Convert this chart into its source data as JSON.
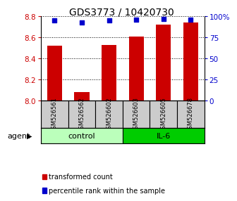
{
  "title": "GDS3773 / 10420730",
  "samples": [
    "GSM526561",
    "GSM526562",
    "GSM526602",
    "GSM526603",
    "GSM526605",
    "GSM526678"
  ],
  "bar_values": [
    8.52,
    8.08,
    8.53,
    8.61,
    8.72,
    8.74
  ],
  "percentile_values": [
    95,
    93,
    95,
    96,
    97,
    96
  ],
  "ylim_left": [
    8.0,
    8.8
  ],
  "ylim_right": [
    0,
    100
  ],
  "yticks_left": [
    8.0,
    8.2,
    8.4,
    8.6,
    8.8
  ],
  "yticks_right": [
    0,
    25,
    50,
    75,
    100
  ],
  "ytick_labels_right": [
    "0",
    "25",
    "50",
    "75",
    "100%"
  ],
  "bar_color": "#cc0000",
  "dot_color": "#0000cc",
  "bar_width": 0.55,
  "groups": [
    {
      "label": "control",
      "indices": [
        0,
        1,
        2
      ],
      "color": "#bbffbb"
    },
    {
      "label": "IL-6",
      "indices": [
        3,
        4,
        5
      ],
      "color": "#00cc00"
    }
  ],
  "agent_label": "agent",
  "legend_items": [
    {
      "color": "#cc0000",
      "label": "transformed count"
    },
    {
      "color": "#0000cc",
      "label": "percentile rank within the sample"
    }
  ],
  "background_color": "#ffffff",
  "label_area_bg": "#cccccc",
  "title_fontsize": 10,
  "tick_color_left": "#cc0000",
  "tick_color_right": "#0000cc",
  "tick_fontsize": 7.5,
  "sample_fontsize": 6,
  "group_fontsize": 8,
  "legend_fontsize": 7
}
